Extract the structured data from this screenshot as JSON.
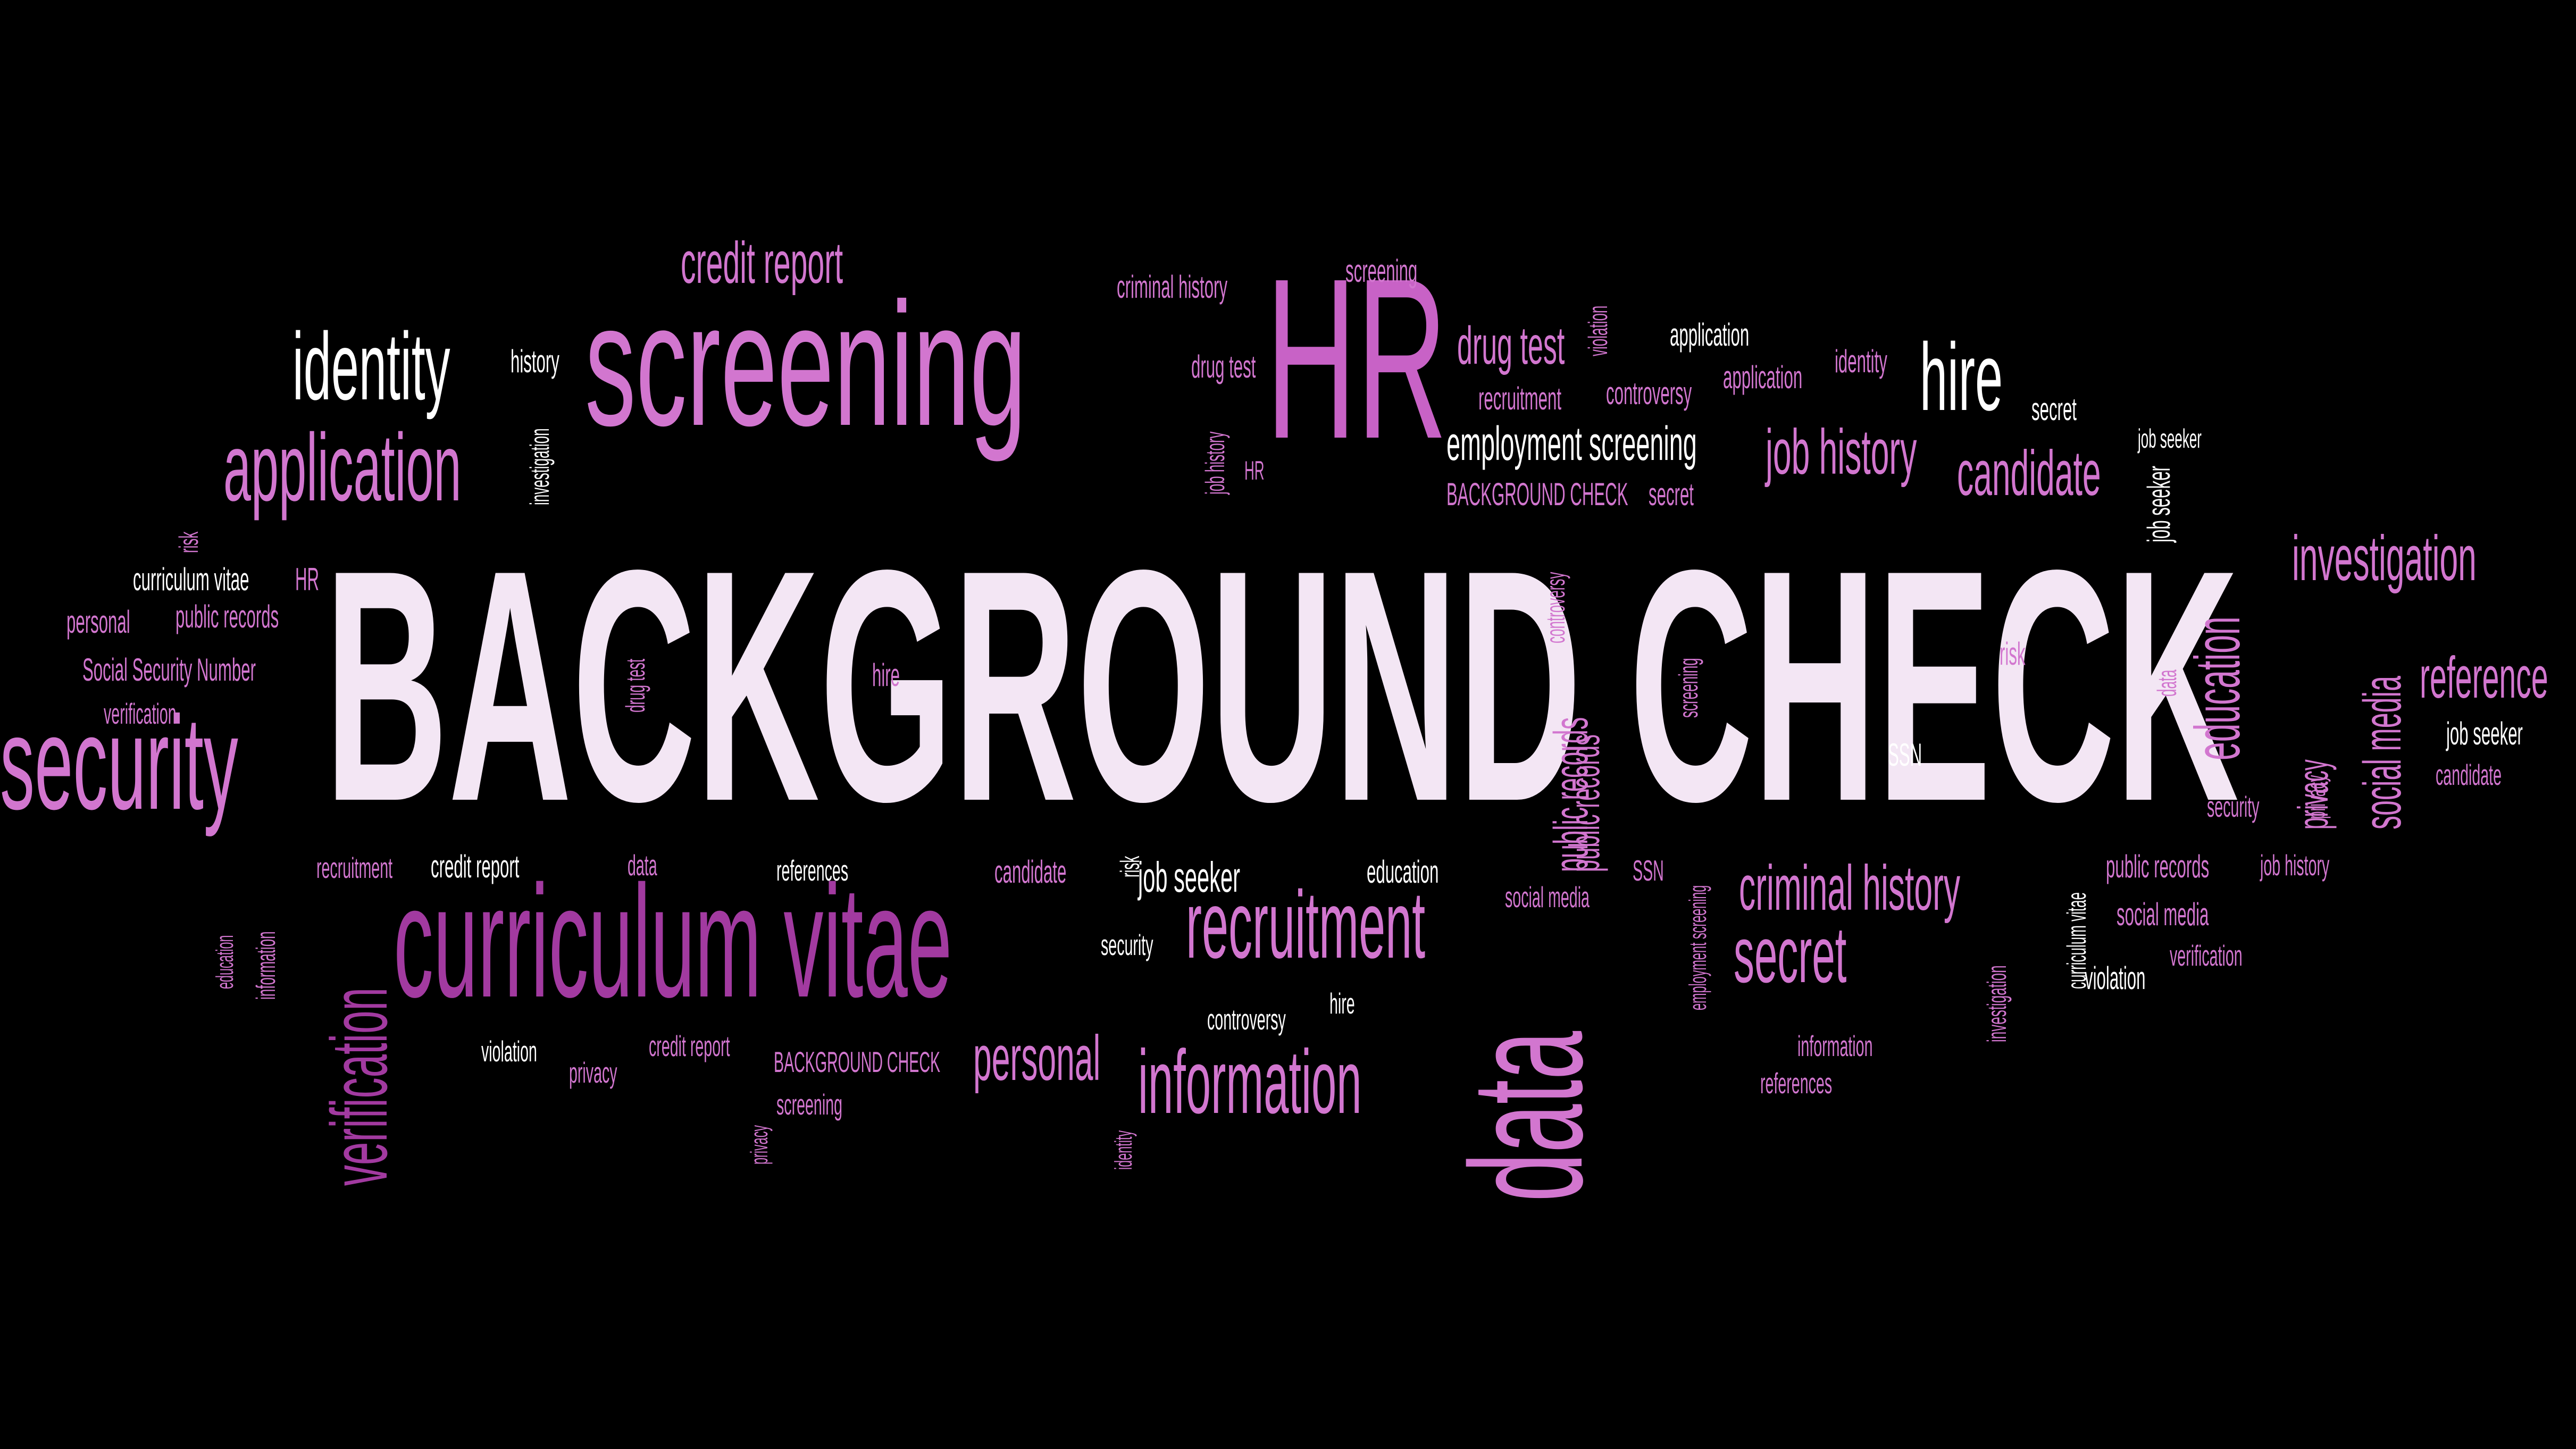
{
  "words": [
    {
      "text": "BACKGROUND CHECK",
      "tone": "light"
    },
    {
      "text": "screening",
      "tone": "pink"
    },
    {
      "text": "HR",
      "tone": "pink2"
    },
    {
      "text": "curriculum vitae",
      "tone": "violet"
    },
    {
      "text": "security",
      "tone": "pink"
    },
    {
      "text": "data",
      "tone": "pink"
    },
    {
      "text": "identity",
      "tone": "white"
    },
    {
      "text": "application",
      "tone": "pink"
    },
    {
      "text": "verification",
      "tone": "violet"
    },
    {
      "text": "recruitment",
      "tone": "pink"
    },
    {
      "text": "information",
      "tone": "pink"
    },
    {
      "text": "personal",
      "tone": "pink"
    },
    {
      "text": "secret",
      "tone": "pink"
    },
    {
      "text": "criminal history",
      "tone": "pink"
    },
    {
      "text": "education",
      "tone": "pink"
    },
    {
      "text": "investigation",
      "tone": "pink"
    },
    {
      "text": "reference",
      "tone": "pink"
    },
    {
      "text": "social media",
      "tone": "pink"
    },
    {
      "text": "hire",
      "tone": "white"
    },
    {
      "text": "job history",
      "tone": "pink"
    },
    {
      "text": "candidate",
      "tone": "pink"
    },
    {
      "text": "credit report",
      "tone": "pink"
    },
    {
      "text": "drug test",
      "tone": "pink"
    },
    {
      "text": "employment screening",
      "tone": "white"
    },
    {
      "text": "public records",
      "tone": "pink"
    },
    {
      "text": "job seeker",
      "tone": "white"
    },
    {
      "text": "privacy",
      "tone": "pink"
    },
    {
      "text": "criminal history",
      "tone": "pink"
    },
    {
      "text": "screening",
      "tone": "pink"
    },
    {
      "text": "history",
      "tone": "white"
    },
    {
      "text": "investigation",
      "tone": "white"
    },
    {
      "text": "drug test",
      "tone": "pink"
    },
    {
      "text": "job history",
      "tone": "pink"
    },
    {
      "text": "HR",
      "tone": "pink"
    },
    {
      "text": "recruitment",
      "tone": "pink"
    },
    {
      "text": "controversy",
      "tone": "pink"
    },
    {
      "text": "application",
      "tone": "pink"
    },
    {
      "text": "identity",
      "tone": "pink"
    },
    {
      "text": "violation",
      "tone": "pink"
    },
    {
      "text": "application",
      "tone": "white"
    },
    {
      "text": "secret",
      "tone": "white"
    },
    {
      "text": "BACKGROUND CHECK",
      "tone": "pink"
    },
    {
      "text": "secret",
      "tone": "pink"
    },
    {
      "text": "job seeker",
      "tone": "white"
    },
    {
      "text": "risk",
      "tone": "pink"
    },
    {
      "text": "curriculum vitae",
      "tone": "white"
    },
    {
      "text": "HR",
      "tone": "pink"
    },
    {
      "text": "personal",
      "tone": "pink"
    },
    {
      "text": "public records",
      "tone": "pink"
    },
    {
      "text": "Social Security Number",
      "tone": "pink"
    },
    {
      "text": "verification",
      "tone": "pink"
    },
    {
      "text": "hire",
      "tone": "pink"
    },
    {
      "text": "drug test",
      "tone": "pink"
    },
    {
      "text": "controversy",
      "tone": "pink"
    },
    {
      "text": "public records",
      "tone": "pink"
    },
    {
      "text": "screening",
      "tone": "pink"
    },
    {
      "text": "risk",
      "tone": "pink"
    },
    {
      "text": "data",
      "tone": "pink"
    },
    {
      "text": "SSN",
      "tone": "white"
    },
    {
      "text": "security",
      "tone": "pink"
    },
    {
      "text": "privacy",
      "tone": "pink"
    },
    {
      "text": "job seeker",
      "tone": "white"
    },
    {
      "text": "candidate",
      "tone": "pink"
    },
    {
      "text": "public records",
      "tone": "pink"
    },
    {
      "text": "job history",
      "tone": "pink"
    },
    {
      "text": "recruitment",
      "tone": "pink"
    },
    {
      "text": "credit report",
      "tone": "white"
    },
    {
      "text": "data",
      "tone": "pink"
    },
    {
      "text": "references",
      "tone": "white"
    },
    {
      "text": "candidate",
      "tone": "pink"
    },
    {
      "text": "risk",
      "tone": "white"
    },
    {
      "text": "job seeker",
      "tone": "white"
    },
    {
      "text": "education",
      "tone": "white"
    },
    {
      "text": "social media",
      "tone": "pink"
    },
    {
      "text": "SSN",
      "tone": "pink"
    },
    {
      "text": "employment screening",
      "tone": "pink"
    },
    {
      "text": "curriculum vitae",
      "tone": "white"
    },
    {
      "text": "violation",
      "tone": "white"
    },
    {
      "text": "social media",
      "tone": "pink"
    },
    {
      "text": "verification",
      "tone": "pink"
    },
    {
      "text": "investigation",
      "tone": "pink"
    },
    {
      "text": "information",
      "tone": "pink"
    },
    {
      "text": "references",
      "tone": "pink"
    },
    {
      "text": "education",
      "tone": "pink"
    },
    {
      "text": "information",
      "tone": "pink"
    },
    {
      "text": "security",
      "tone": "white"
    },
    {
      "text": "hire",
      "tone": "white"
    },
    {
      "text": "controversy",
      "tone": "white"
    },
    {
      "text": "violation",
      "tone": "white"
    },
    {
      "text": "privacy",
      "tone": "pink"
    },
    {
      "text": "credit report",
      "tone": "pink"
    },
    {
      "text": "BACKGROUND CHECK",
      "tone": "pink"
    },
    {
      "text": "screening",
      "tone": "pink"
    },
    {
      "text": "privacy",
      "tone": "pink"
    },
    {
      "text": "identity",
      "tone": "pink"
    }
  ]
}
